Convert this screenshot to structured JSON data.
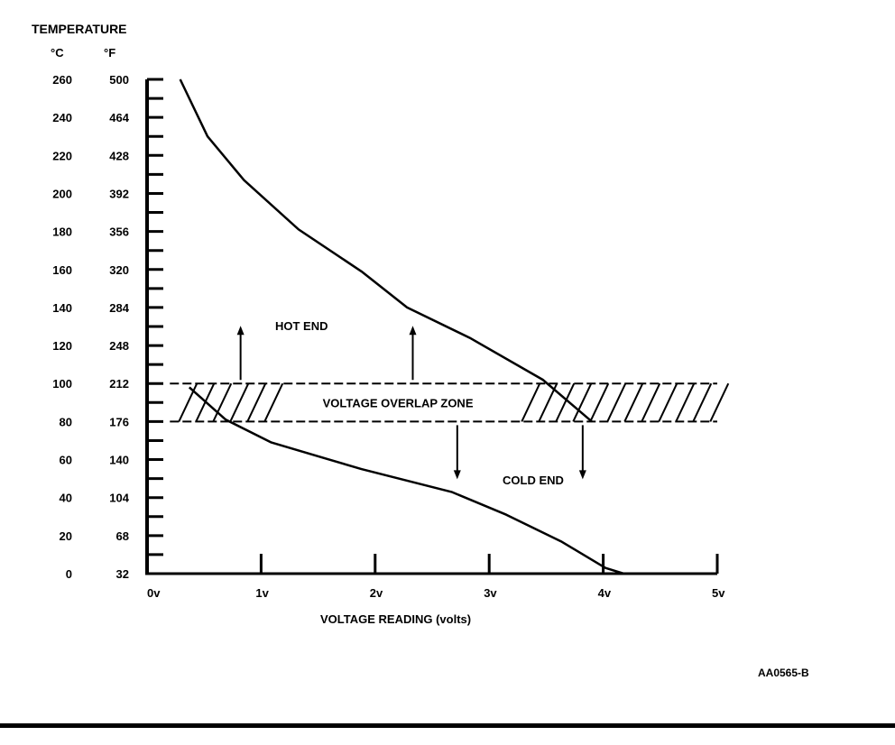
{
  "chart_data": {
    "type": "line",
    "title": "TEMPERATURE",
    "ylabel_c": "°C",
    "ylabel_f": "°F",
    "xlabel": "VOLTAGE READING (volts)",
    "xlim": [
      0,
      5
    ],
    "ylim": [
      0,
      260
    ],
    "x_ticks": [
      0,
      1,
      2,
      3,
      4,
      5
    ],
    "x_tick_labels": [
      "0v",
      "1v",
      "2v",
      "3v",
      "4v",
      "5v"
    ],
    "y_ticks_c": [
      0,
      20,
      40,
      60,
      80,
      100,
      120,
      140,
      160,
      180,
      200,
      220,
      240,
      260
    ],
    "y_tick_labels_c": [
      "0",
      "20",
      "40",
      "60",
      "80",
      "100",
      "120",
      "140",
      "160",
      "180",
      "200",
      "220",
      "240",
      "260"
    ],
    "y_tick_labels_f": [
      "32",
      "68",
      "104",
      "140",
      "176",
      "212",
      "248",
      "284",
      "320",
      "356",
      "392",
      "428",
      "464",
      "500"
    ],
    "series": [
      {
        "name": "HOT END",
        "points": [
          [
            0.29,
            260
          ],
          [
            0.53,
            230
          ],
          [
            0.85,
            207
          ],
          [
            1.33,
            181
          ],
          [
            1.88,
            159
          ],
          [
            2.28,
            140
          ],
          [
            2.83,
            124
          ],
          [
            3.47,
            102
          ],
          [
            3.9,
            80
          ]
        ]
      },
      {
        "name": "COLD END",
        "points": [
          [
            0.37,
            98
          ],
          [
            0.69,
            81
          ],
          [
            1.09,
            69
          ],
          [
            1.88,
            55
          ],
          [
            2.67,
            43
          ],
          [
            3.15,
            31
          ],
          [
            3.63,
            17
          ],
          [
            4.02,
            3
          ],
          [
            4.18,
            0
          ]
        ]
      }
    ],
    "zone": {
      "label": "VOLTAGE OVERLAP ZONE",
      "y_range": [
        80,
        100
      ],
      "x_range": [
        0.2,
        5.0
      ]
    },
    "annotations": [
      {
        "text": "HOT END",
        "x": 1.55,
        "y": 130
      },
      {
        "text": "COLD END",
        "x": 3.4,
        "y": 49
      }
    ],
    "arrows_up": [
      0.82,
      2.33
    ],
    "arrows_down": [
      2.72,
      3.82
    ],
    "figure_id": "AA0565-B"
  }
}
